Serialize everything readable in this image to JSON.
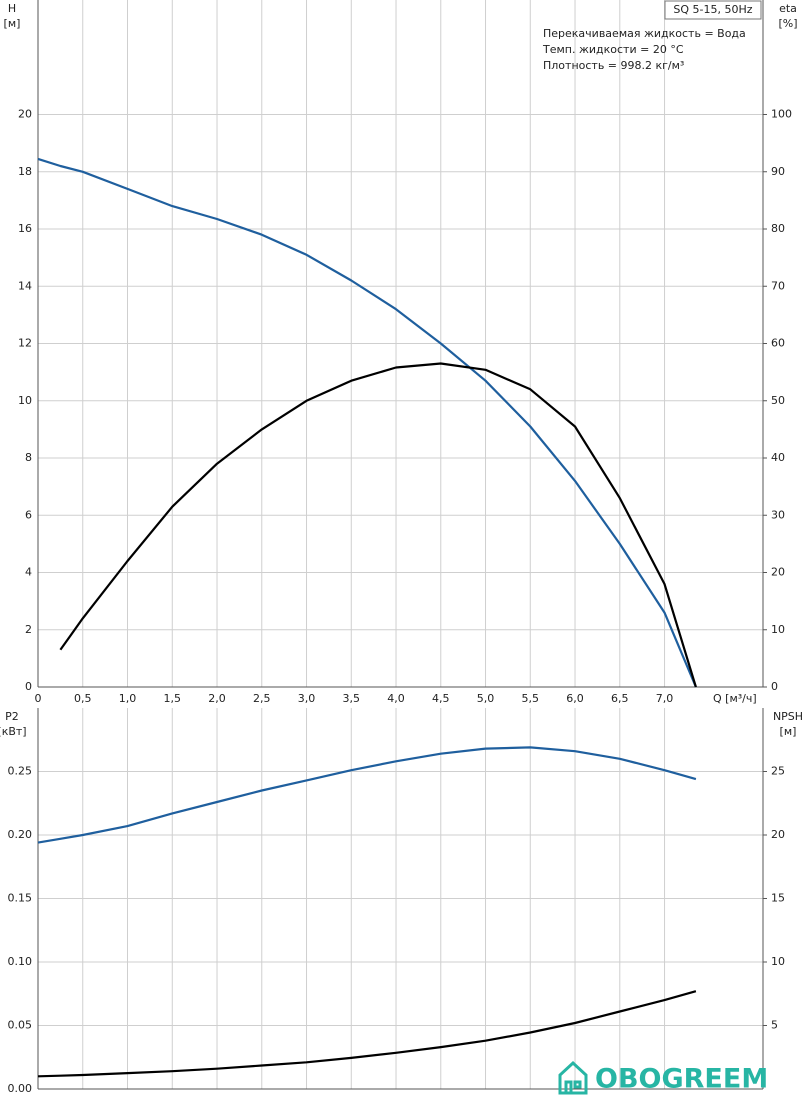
{
  "chart_data": [
    {
      "type": "line",
      "title": "SQ 5-15, 50Hz",
      "annotations": [
        "Перекачиваемая жидкость = Вода",
        "Темп. жидкости = 20 °C",
        "Плотность = 998.2 кг/м³"
      ],
      "ylabel": "H",
      "yunit": "[м]",
      "y2label": "eta",
      "y2unit": "[%]",
      "xlabel": "Q [м³/ч]",
      "x": [
        0,
        0.25,
        0.5,
        1.0,
        1.5,
        2.0,
        2.5,
        3.0,
        3.5,
        4.0,
        4.5,
        5.0,
        5.5,
        6.0,
        6.5,
        7.0,
        7.35
      ],
      "series": [
        {
          "name": "H",
          "color": "#1f5f9e",
          "values": [
            18.45,
            18.2,
            18.0,
            17.4,
            16.8,
            16.35,
            15.8,
            15.1,
            14.2,
            13.2,
            12.0,
            10.7,
            9.1,
            7.2,
            5.0,
            2.6,
            0
          ]
        },
        {
          "name": "eta",
          "color": "#000000",
          "axis": "y2",
          "values": [
            null,
            6.5,
            12,
            22,
            31.5,
            39,
            45,
            50,
            53.5,
            55.8,
            56.5,
            55.4,
            52,
            45.5,
            33,
            18,
            0
          ]
        }
      ],
      "xlim": [
        0,
        8.1
      ],
      "xticks": [
        0,
        {
          "value": 0.5,
          "label": "0,5"
        },
        {
          "value": 1.0,
          "label": "1,0"
        },
        {
          "value": 1.5,
          "label": "1,5"
        },
        {
          "value": 2.0,
          "label": "2,0"
        },
        {
          "value": 2.5,
          "label": "2,5"
        },
        {
          "value": 3.0,
          "label": "3,0"
        },
        {
          "value": 3.5,
          "label": "3,5"
        },
        {
          "value": 4.0,
          "label": "4,0"
        },
        {
          "value": 4.5,
          "label": "4,5"
        },
        {
          "value": 5.0,
          "label": "5,0"
        },
        {
          "value": 5.5,
          "label": "5,5"
        },
        {
          "value": 6.0,
          "label": "6,0"
        },
        {
          "value": 6.5,
          "label": "6,5"
        },
        {
          "value": 7.0,
          "label": "7,0"
        }
      ],
      "ylim": [
        0,
        24
      ],
      "yticks": [
        0,
        2,
        4,
        6,
        8,
        10,
        12,
        14,
        16,
        18,
        20
      ],
      "y2lim": [
        0,
        120
      ],
      "y2ticks": [
        0,
        10,
        20,
        30,
        40,
        50,
        60,
        70,
        80,
        90,
        100
      ],
      "grid": true
    },
    {
      "type": "line",
      "ylabel": "P2",
      "yunit": "[кВт]",
      "y2label": "NPSH",
      "y2unit": "[м]",
      "x": [
        0,
        0.25,
        0.5,
        1.0,
        1.5,
        2.0,
        2.5,
        3.0,
        3.5,
        4.0,
        4.5,
        5.0,
        5.5,
        6.0,
        6.5,
        7.0,
        7.35
      ],
      "series": [
        {
          "name": "P2",
          "color": "#1f5f9e",
          "values": [
            0.194,
            0.197,
            0.2,
            0.207,
            0.217,
            0.226,
            0.235,
            0.243,
            0.251,
            0.258,
            0.264,
            0.268,
            0.269,
            0.266,
            0.26,
            0.251,
            0.244
          ]
        },
        {
          "name": "NPSH",
          "color": "#000000",
          "axis": "y2",
          "values": [
            1.0,
            1.05,
            1.1,
            1.25,
            1.4,
            1.6,
            1.85,
            2.1,
            2.45,
            2.85,
            3.3,
            3.8,
            4.45,
            5.2,
            6.1,
            7.0,
            7.7
          ]
        }
      ],
      "xlim": [
        0,
        8.1
      ],
      "xticks": [
        0,
        0.5,
        1.0,
        1.5,
        2.0,
        2.5,
        3.0,
        3.5,
        4.0,
        4.5,
        5.0,
        5.5,
        6.0,
        6.5,
        7.0
      ],
      "xtick_labels": false,
      "ylim": [
        0,
        0.3
      ],
      "yticks": [
        {
          "value": 0,
          "label": "0.00"
        },
        0.05,
        {
          "value": 0.1,
          "label": "0.10"
        },
        0.15,
        {
          "value": 0.2,
          "label": "0.20"
        },
        0.25
      ],
      "y2lim": [
        0,
        30
      ],
      "y2ticks": [
        5,
        10,
        15,
        20,
        25
      ],
      "grid": true
    }
  ],
  "watermark": "OBOGREEM"
}
